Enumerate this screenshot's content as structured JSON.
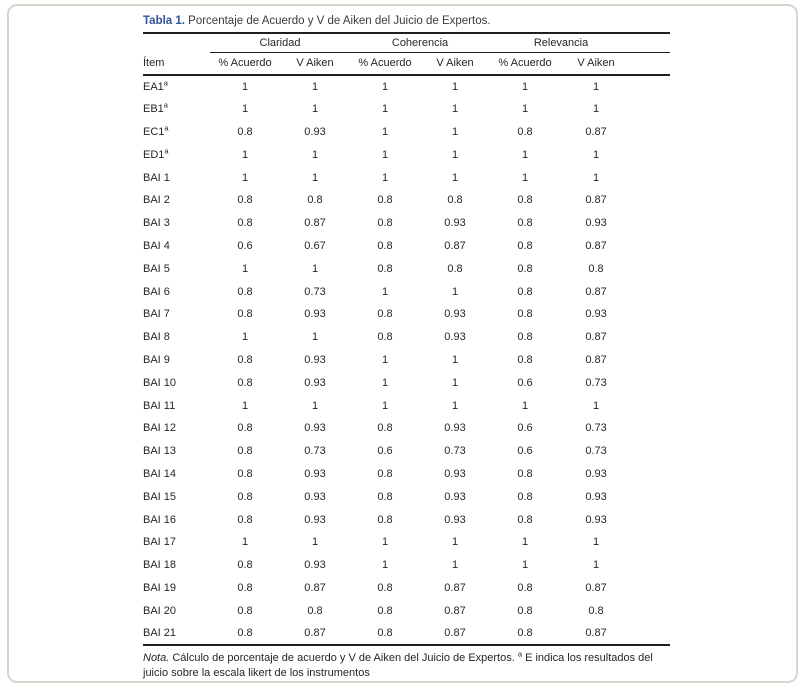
{
  "page": {
    "title_label": "Tabla 1.",
    "title_text": " Porcentaje de Acuerdo y V de Aiken del Juicio de Expertos."
  },
  "table": {
    "item_header": "Ítem",
    "groups": [
      {
        "label": "Claridad"
      },
      {
        "label": "Coherencia"
      },
      {
        "label": "Relevancia"
      }
    ],
    "sub_headers": [
      "% Acuerdo",
      "V Aiken",
      "% Acuerdo",
      "V Aiken",
      "% Acuerdo",
      "V Aiken"
    ],
    "rows": [
      {
        "item": "EA1",
        "sup": "a",
        "values": [
          "1",
          "1",
          "1",
          "1",
          "1",
          "1"
        ]
      },
      {
        "item": "EB1",
        "sup": "a",
        "values": [
          "1",
          "1",
          "1",
          "1",
          "1",
          "1"
        ]
      },
      {
        "item": "EC1",
        "sup": "a",
        "values": [
          "0.8",
          "0.93",
          "1",
          "1",
          "0.8",
          "0.87"
        ]
      },
      {
        "item": "ED1",
        "sup": "a",
        "values": [
          "1",
          "1",
          "1",
          "1",
          "1",
          "1"
        ]
      },
      {
        "item": "BAI 1",
        "sup": "",
        "values": [
          "1",
          "1",
          "1",
          "1",
          "1",
          "1"
        ]
      },
      {
        "item": "BAI 2",
        "sup": "",
        "values": [
          "0.8",
          "0.8",
          "0.8",
          "0.8",
          "0.8",
          "0.87"
        ]
      },
      {
        "item": "BAI 3",
        "sup": "",
        "values": [
          "0.8",
          "0.87",
          "0.8",
          "0.93",
          "0.8",
          "0.93"
        ]
      },
      {
        "item": "BAI 4",
        "sup": "",
        "values": [
          "0.6",
          "0.67",
          "0.8",
          "0.87",
          "0.8",
          "0.87"
        ]
      },
      {
        "item": "BAI 5",
        "sup": "",
        "values": [
          "1",
          "1",
          "0.8",
          "0.8",
          "0.8",
          "0.8"
        ]
      },
      {
        "item": "BAI 6",
        "sup": "",
        "values": [
          "0.8",
          "0.73",
          "1",
          "1",
          "0.8",
          "0.87"
        ]
      },
      {
        "item": "BAI 7",
        "sup": "",
        "values": [
          "0.8",
          "0.93",
          "0.8",
          "0.93",
          "0.8",
          "0.93"
        ]
      },
      {
        "item": "BAI 8",
        "sup": "",
        "values": [
          "1",
          "1",
          "0.8",
          "0.93",
          "0.8",
          "0.87"
        ]
      },
      {
        "item": "BAI 9",
        "sup": "",
        "values": [
          "0.8",
          "0.93",
          "1",
          "1",
          "0.8",
          "0.87"
        ]
      },
      {
        "item": "BAI 10",
        "sup": "",
        "values": [
          "0.8",
          "0.93",
          "1",
          "1",
          "0.6",
          "0.73"
        ]
      },
      {
        "item": "BAI 11",
        "sup": "",
        "values": [
          "1",
          "1",
          "1",
          "1",
          "1",
          "1"
        ]
      },
      {
        "item": "BAI 12",
        "sup": "",
        "values": [
          "0.8",
          "0.93",
          "0.8",
          "0.93",
          "0.6",
          "0.73"
        ]
      },
      {
        "item": "BAI 13",
        "sup": "",
        "values": [
          "0.8",
          "0.73",
          "0.6",
          "0.73",
          "0.6",
          "0.73"
        ]
      },
      {
        "item": "BAI 14",
        "sup": "",
        "values": [
          "0.8",
          "0.93",
          "0.8",
          "0.93",
          "0.8",
          "0.93"
        ]
      },
      {
        "item": "BAI 15",
        "sup": "",
        "values": [
          "0.8",
          "0.93",
          "0.8",
          "0.93",
          "0.8",
          "0.93"
        ]
      },
      {
        "item": "BAI 16",
        "sup": "",
        "values": [
          "0.8",
          "0.93",
          "0.8",
          "0.93",
          "0.8",
          "0.93"
        ]
      },
      {
        "item": "BAI 17",
        "sup": "",
        "values": [
          "1",
          "1",
          "1",
          "1",
          "1",
          "1"
        ]
      },
      {
        "item": "BAI 18",
        "sup": "",
        "values": [
          "0.8",
          "0.93",
          "1",
          "1",
          "1",
          "1"
        ]
      },
      {
        "item": "BAI 19",
        "sup": "",
        "values": [
          "0.8",
          "0.87",
          "0.8",
          "0.87",
          "0.8",
          "0.87"
        ]
      },
      {
        "item": "BAI 20",
        "sup": "",
        "values": [
          "0.8",
          "0.8",
          "0.8",
          "0.87",
          "0.8",
          "0.8"
        ]
      },
      {
        "item": "BAI 21",
        "sup": "",
        "values": [
          "0.8",
          "0.87",
          "0.8",
          "0.87",
          "0.8",
          "0.87"
        ]
      }
    ]
  },
  "note": {
    "label": "Nota.",
    "text_before_sup": " Cálculo de porcentaje de acuerdo y V de Aiken del Juicio de Expertos. ",
    "sup": "a",
    "text_after_sup": " E indica los resultados del juicio sobre la escala likert de los instrumentos"
  },
  "colors": {
    "title_accent": "#2e5496",
    "body_text": "#262626",
    "rule": "#1f1f1f",
    "card_border": "#d9d5cc",
    "background": "#ffffff"
  }
}
